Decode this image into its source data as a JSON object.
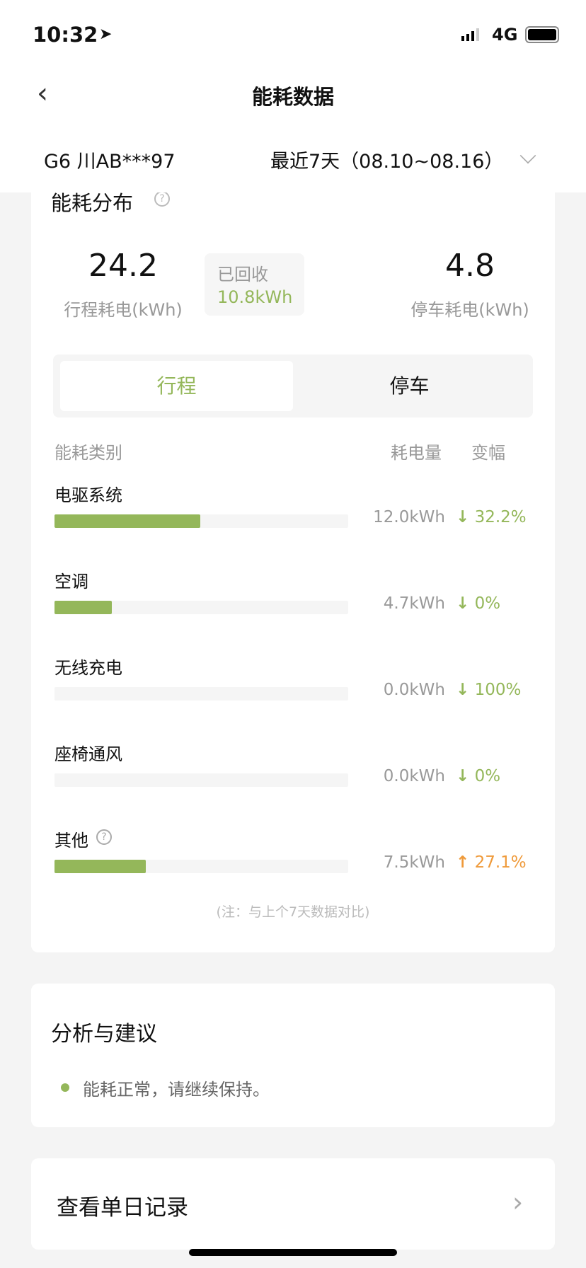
{
  "status_bar": {
    "time": "10:32",
    "network": "4G",
    "icons": [
      "location-arrow-icon",
      "signal-icon",
      "battery-icon"
    ]
  },
  "nav": {
    "title": "能耗数据",
    "back_icon": "chevron-left-icon"
  },
  "selector": {
    "vehicle": "G6 川AB***97",
    "period": "最近7天（08.10~08.16）"
  },
  "distribution": {
    "title": "能耗分布",
    "trip_value": "24.2",
    "trip_label": "行程耗电(kWh)",
    "recovered_label": "已回收",
    "recovered_value": "10.8kWh",
    "park_value": "4.8",
    "park_label": "停车耗电(kWh)",
    "tabs": [
      {
        "label": "行程",
        "selected": true
      },
      {
        "label": "停车",
        "selected": false
      }
    ],
    "columns": {
      "category": "能耗类别",
      "amount": "耗电量",
      "change": "变幅"
    },
    "rows": [
      {
        "label": "电驱系统",
        "amount": "12.0kWh",
        "change": "32.2%",
        "direction": "down",
        "fraction": 0.496
      },
      {
        "label": "空调",
        "amount": "4.7kWh",
        "change": "0%",
        "direction": "down",
        "fraction": 0.194
      },
      {
        "label": "无线充电",
        "amount": "0.0kWh",
        "change": "100%",
        "direction": "down",
        "fraction": 0
      },
      {
        "label": "座椅通风",
        "amount": "0.0kWh",
        "change": "0%",
        "direction": "down",
        "fraction": 0
      },
      {
        "label": "其他",
        "amount": "7.5kWh",
        "change": "27.1%",
        "direction": "up",
        "fraction": 0.31,
        "help": true
      }
    ],
    "note": "(注：与上个7天数据对比)"
  },
  "analysis": {
    "title": "分析与建议",
    "items": [
      "能耗正常，请继续保持。"
    ]
  },
  "daily": {
    "label": "查看单日记录"
  },
  "colors": {
    "accent": "#94b75a",
    "up": "#ef9a3a",
    "background": "#f4f4f4"
  }
}
